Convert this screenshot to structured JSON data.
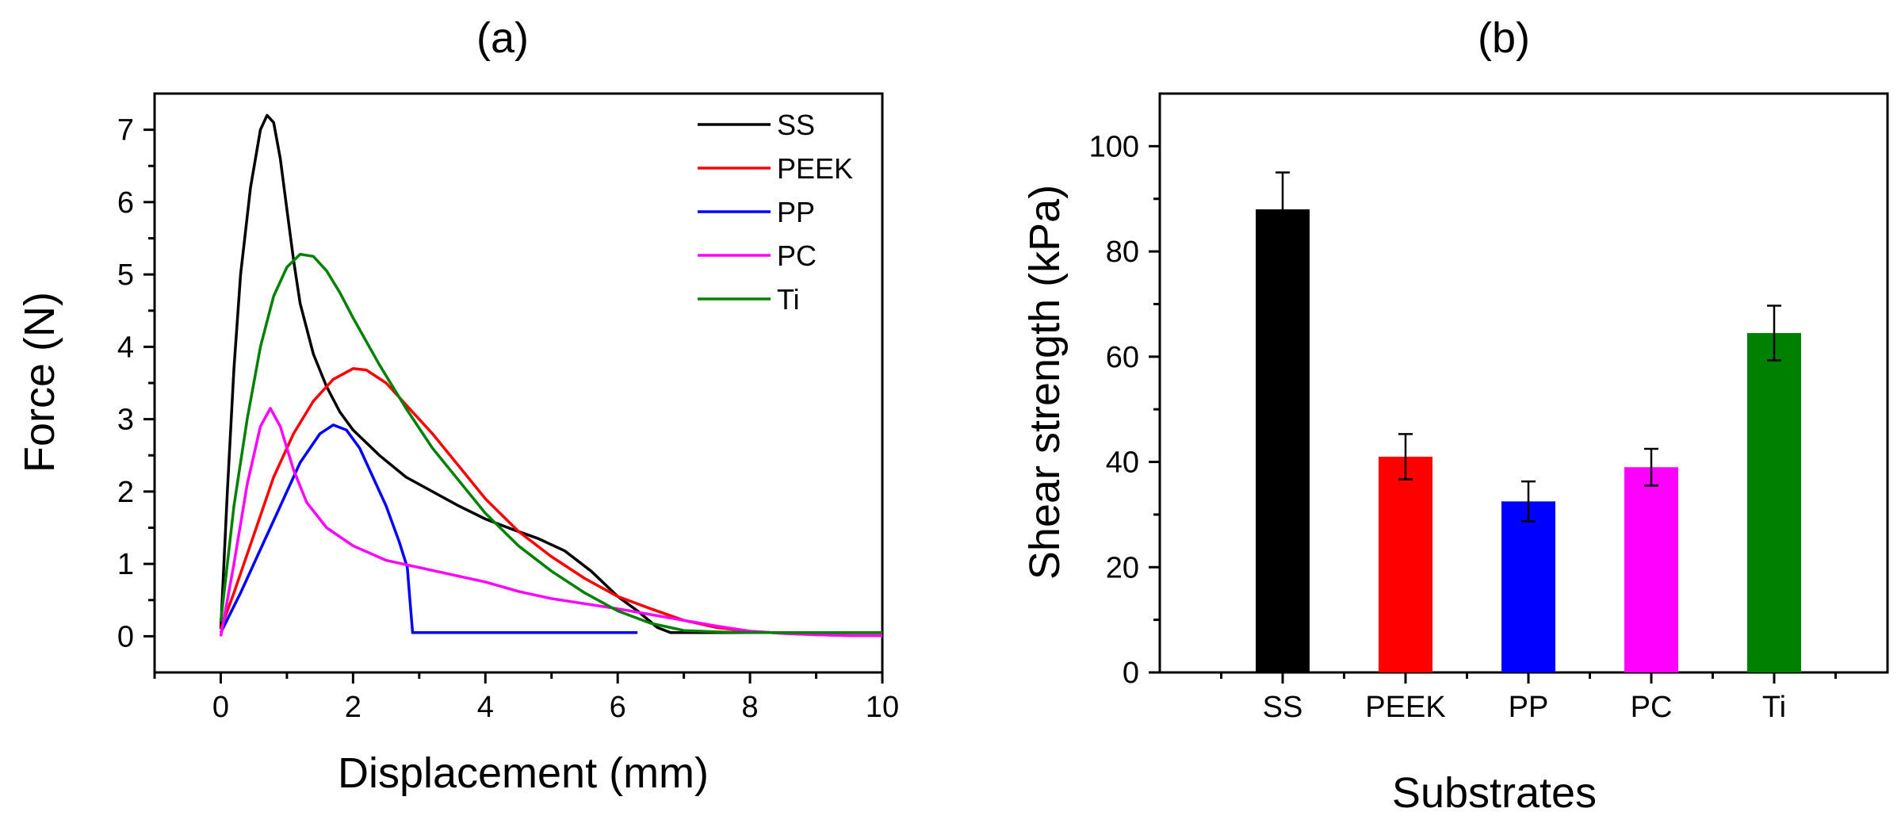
{
  "chart_data": [
    {
      "type": "line",
      "panel_label": "(a)",
      "xlabel": "Displacement (mm)",
      "ylabel": "Force (N)",
      "xlim": [
        -1,
        10
      ],
      "ylim": [
        -0.5,
        7.5
      ],
      "xticks": [
        0,
        2,
        4,
        6,
        8,
        10
      ],
      "yticks": [
        0,
        1,
        2,
        3,
        4,
        5,
        6,
        7
      ],
      "legend_position": "top-right",
      "series": [
        {
          "name": "SS",
          "color": "#000000",
          "x": [
            0,
            0.1,
            0.2,
            0.3,
            0.45,
            0.6,
            0.7,
            0.8,
            0.9,
            1.0,
            1.1,
            1.2,
            1.4,
            1.6,
            1.8,
            2.0,
            2.4,
            2.8,
            3.2,
            3.6,
            4.0,
            4.4,
            4.8,
            5.2,
            5.6,
            6.0,
            6.3,
            6.6,
            6.8,
            7.5,
            8.5,
            9.5,
            10.0
          ],
          "y": [
            0.1,
            2.0,
            3.7,
            5.0,
            6.2,
            7.0,
            7.2,
            7.1,
            6.6,
            5.9,
            5.2,
            4.6,
            3.9,
            3.45,
            3.1,
            2.85,
            2.5,
            2.2,
            2.0,
            1.8,
            1.62,
            1.48,
            1.35,
            1.18,
            0.9,
            0.55,
            0.35,
            0.12,
            0.05,
            0.05,
            0.05,
            0.05,
            0.05
          ]
        },
        {
          "name": "PEEK",
          "color": "#ff0000",
          "x": [
            0,
            0.2,
            0.5,
            0.8,
            1.1,
            1.4,
            1.7,
            2.0,
            2.2,
            2.5,
            2.8,
            3.2,
            3.6,
            4.0,
            4.5,
            5.0,
            5.5,
            6.0,
            6.5,
            7.0,
            7.5,
            8.0,
            8.5,
            9.0,
            9.5,
            10.0
          ],
          "y": [
            0.1,
            0.6,
            1.4,
            2.2,
            2.8,
            3.25,
            3.55,
            3.7,
            3.68,
            3.5,
            3.2,
            2.8,
            2.35,
            1.9,
            1.45,
            1.1,
            0.8,
            0.55,
            0.38,
            0.22,
            0.12,
            0.07,
            0.04,
            0.02,
            0.01,
            0.01
          ]
        },
        {
          "name": "PP",
          "color": "#0000ff",
          "x": [
            0,
            0.3,
            0.6,
            0.9,
            1.2,
            1.5,
            1.7,
            1.9,
            2.1,
            2.3,
            2.5,
            2.7,
            2.82,
            2.86,
            2.9,
            3.5,
            4.5,
            5.5,
            6.3
          ],
          "y": [
            0.05,
            0.6,
            1.2,
            1.8,
            2.4,
            2.8,
            2.92,
            2.85,
            2.6,
            2.2,
            1.8,
            1.3,
            0.95,
            0.5,
            0.05,
            0.05,
            0.05,
            0.05,
            0.05
          ]
        },
        {
          "name": "PC",
          "color": "#ff00ff",
          "x": [
            0,
            0.2,
            0.4,
            0.6,
            0.75,
            0.9,
            1.1,
            1.3,
            1.6,
            2.0,
            2.5,
            3.0,
            3.5,
            4.0,
            4.5,
            5.0,
            5.5,
            6.0,
            6.5,
            7.0,
            7.5,
            8.0,
            8.5,
            9.0,
            9.5,
            10.0
          ],
          "y": [
            0.0,
            1.0,
            2.1,
            2.9,
            3.15,
            2.9,
            2.3,
            1.85,
            1.5,
            1.25,
            1.05,
            0.95,
            0.85,
            0.75,
            0.62,
            0.52,
            0.45,
            0.38,
            0.3,
            0.22,
            0.14,
            0.07,
            0.04,
            0.02,
            0.01,
            0.01
          ]
        },
        {
          "name": "Ti",
          "color": "#008000",
          "x": [
            0,
            0.2,
            0.4,
            0.6,
            0.8,
            1.0,
            1.2,
            1.4,
            1.6,
            1.8,
            2.0,
            2.4,
            2.8,
            3.2,
            3.6,
            4.0,
            4.5,
            5.0,
            5.5,
            6.0,
            6.5,
            7.0,
            7.5,
            8.0,
            9.0,
            10.0
          ],
          "y": [
            0.2,
            1.8,
            3.0,
            4.0,
            4.7,
            5.1,
            5.28,
            5.25,
            5.05,
            4.75,
            4.4,
            3.75,
            3.15,
            2.6,
            2.15,
            1.7,
            1.25,
            0.9,
            0.6,
            0.35,
            0.18,
            0.08,
            0.06,
            0.05,
            0.05,
            0.05
          ]
        }
      ]
    },
    {
      "type": "bar",
      "panel_label": "(b)",
      "xlabel": "Substrates",
      "ylabel": "Shear strength (kPa)",
      "ylim": [
        0,
        110
      ],
      "yticks": [
        0,
        20,
        40,
        60,
        80,
        100
      ],
      "categories": [
        "SS",
        "PEEK",
        "PP",
        "PC",
        "Ti"
      ],
      "values": [
        88,
        41,
        32.5,
        39,
        64.5
      ],
      "errors": [
        7,
        4.3,
        3.8,
        3.5,
        5.2
      ],
      "colors": [
        "#000000",
        "#ff0000",
        "#0000ff",
        "#ff00ff",
        "#008000"
      ]
    }
  ]
}
